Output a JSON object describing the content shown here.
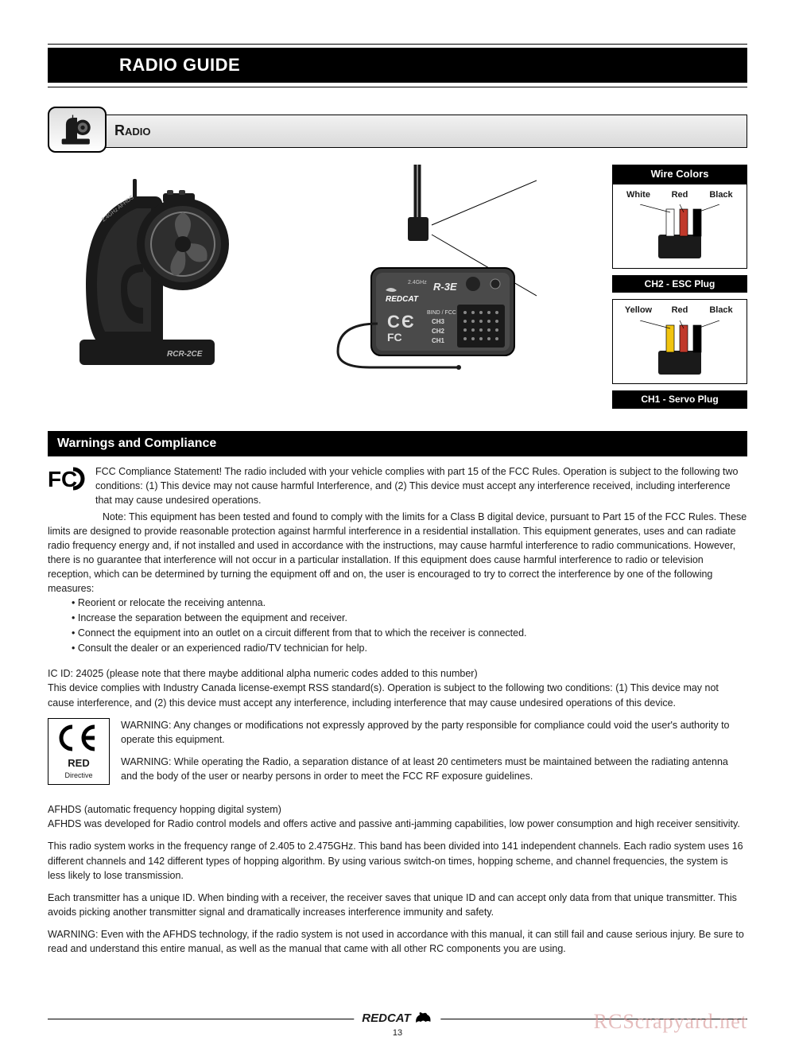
{
  "title": "RADIO GUIDE",
  "section": {
    "label": "Radio"
  },
  "wire_colors": {
    "header": "Wire Colors",
    "plugs": [
      {
        "labels": [
          "White",
          "Red",
          "Black"
        ],
        "colors": [
          "#ffffff",
          "#c0392b",
          "#000000"
        ],
        "caption": "CH2 - ESC Plug"
      },
      {
        "labels": [
          "Yellow",
          "Red",
          "Black"
        ],
        "colors": [
          "#f1c40f",
          "#c0392b",
          "#000000"
        ],
        "caption": "CH1 - Servo Plug"
      }
    ]
  },
  "transmitter": {
    "model": "RCR-2CE",
    "band": "2.4GHz AFHDS"
  },
  "receiver": {
    "brand": "REDCAT",
    "model": "R-3E",
    "band": "2.4GHz",
    "marks": "BIND / FCC",
    "channels": [
      "CH3",
      "CH2",
      "CH1"
    ]
  },
  "warnings_heading": "Warnings and Compliance",
  "fcc": {
    "para1": "FCC Compliance Statement! The radio included with your vehicle complies with part 15 of the FCC Rules. Operation is subject to the following two conditions: (1) This device may not cause harmful Interference, and  (2) This device must accept any interference received, including interference that may cause undesired operations.",
    "note_label": "Note:",
    "note": "This equipment has been tested and found to comply with the limits for a Class B digital device, pursuant to Part 15 of the FCC Rules. These limits are designed to provide reasonable protection against harmful interference in a residential installation. This equipment generates, uses and can radiate radio frequency energy and, if not installed and used in accordance with the instructions, may cause harmful interference to radio communications. However, there is no guarantee that interference will not occur in a particular installation. If this equipment does cause harmful interference to radio or television reception, which can be determined by turning the equipment off and on, the user is encouraged to try to correct the interference by one of the following measures:",
    "bullets": [
      "• Reorient or relocate the receiving antenna.",
      "• Increase the separation between the equipment and receiver.",
      "• Connect the equipment into an outlet on a circuit different from that to which the receiver is connected.",
      "• Consult the dealer or an experienced radio/TV technician for help."
    ]
  },
  "ic": {
    "line1": "IC ID: 24025 (please note that there maybe additional alpha numeric codes added to this number)",
    "line2": "This device complies with Industry Canada license-exempt RSS standard(s). Operation is subject to the following two conditions: (1) This device may not cause interference, and (2) this device must accept any interference, including interference that may cause undesired operations of this device."
  },
  "ce": {
    "red": "RED",
    "directive": "Directive",
    "warn1": "WARNING: Any changes or modifications not expressly approved by the party responsible for compliance could void the user's authority to operate this equipment.",
    "warn2": "WARNING: While operating the Radio, a separation distance of at least 20 centimeters must be maintained between the radiating antenna and the body of the user or nearby persons in order to meet the FCC RF exposure guidelines."
  },
  "afhds": {
    "title": "AFHDS (automatic frequency hopping digital system)",
    "p1": "AFHDS was developed for Radio control models and offers active and passive anti-jamming capabilities, low power consumption and high receiver sensitivity.",
    "p2": "This radio system works in the frequency range of 2.405 to 2.475GHz. This band has been divided into 141 independent channels. Each radio system uses 16 different channels and 142 different types of hopping algorithm. By using various switch-on times, hopping scheme, and channel frequencies, the system is less likely to lose transmission.",
    "p3": "Each transmitter has a unique ID. When binding with a receiver, the receiver saves that unique ID and can accept only data from that unique transmitter. This avoids picking another transmitter signal and dramatically increases interference immunity and safety.",
    "p4": "WARNING: Even with the AFHDS technology, if the radio system is not used in accordance with this manual, it can still fail and cause serious injury. Be sure to read and understand this entire manual, as well as the manual that came with all other RC components you are using."
  },
  "footer": {
    "brand": "REDCAT",
    "page": "13"
  },
  "watermark": "RCScrapyard.net",
  "colors": {
    "black": "#000000",
    "grey_light": "#e5e5e5",
    "grey_mid": "#888888",
    "grey_dark": "#333333"
  }
}
